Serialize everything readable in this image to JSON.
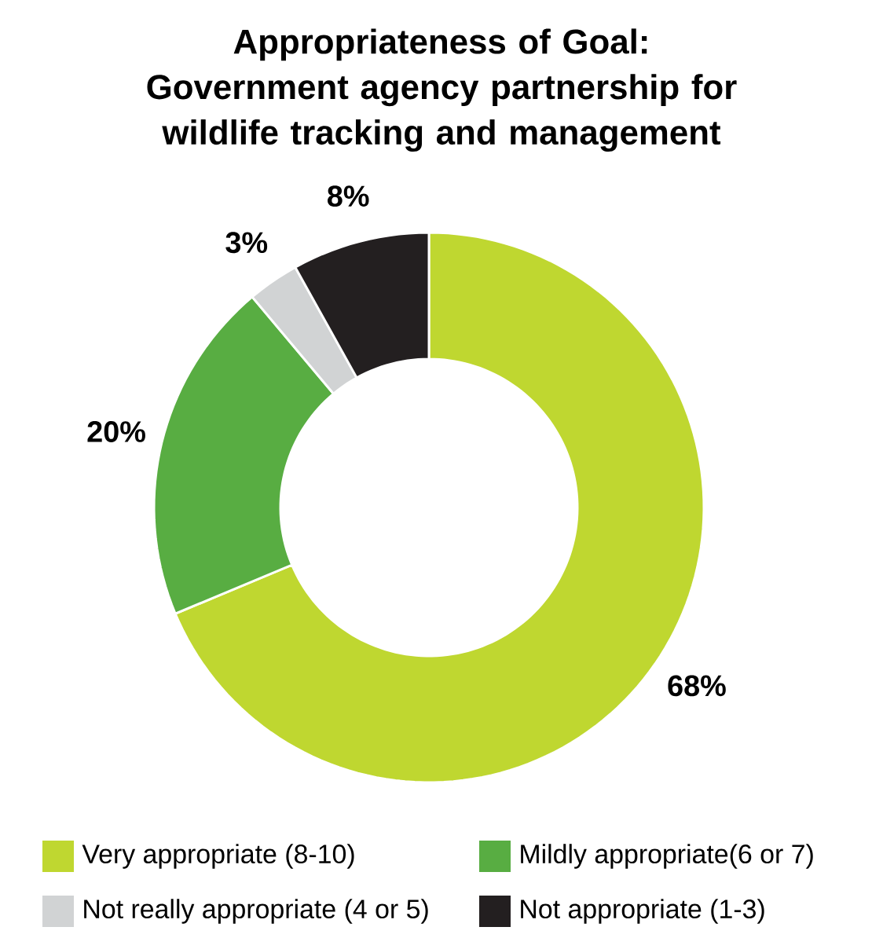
{
  "chart_data": {
    "type": "donut",
    "title": "Appropriateness of Goal:\nGovernment agency partnership for\nwildlife tracking and management",
    "categories": [
      "Very appropriate (8-10)",
      "Mildly appropriate(6 or 7)",
      "Not really appropriate (4 or 5)",
      "Not appropriate (1-3)"
    ],
    "values": [
      68,
      20,
      3,
      8
    ],
    "value_labels": [
      "68%",
      "20%",
      "3%",
      "8%"
    ],
    "colors": [
      "#bfd730",
      "#58ad42",
      "#d1d3d4",
      "#231f20"
    ],
    "legend": "bottom"
  }
}
